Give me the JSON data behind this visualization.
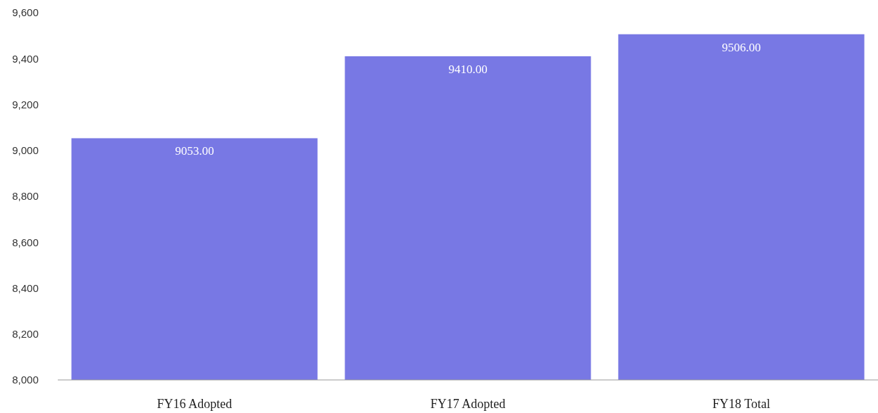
{
  "chart_data": {
    "type": "bar",
    "categories": [
      "FY16 Adopted",
      "FY17 Adopted",
      "FY18 Total"
    ],
    "values": [
      9053,
      9410,
      9506
    ],
    "value_labels": [
      "9053.00",
      "9410.00",
      "9506.00"
    ],
    "color": "#7878e4",
    "ylim": [
      8000,
      9600
    ],
    "yticks": [
      {
        "value": 8000,
        "label": "8,000"
      },
      {
        "value": 8200,
        "label": "8,200"
      },
      {
        "value": 8400,
        "label": "8,400"
      },
      {
        "value": 8600,
        "label": "8,600"
      },
      {
        "value": 8800,
        "label": "8,800"
      },
      {
        "value": 9000,
        "label": "9,000"
      },
      {
        "value": 9200,
        "label": "9,200"
      },
      {
        "value": 9400,
        "label": "9,400"
      },
      {
        "value": 9600,
        "label": "9,600"
      }
    ]
  }
}
